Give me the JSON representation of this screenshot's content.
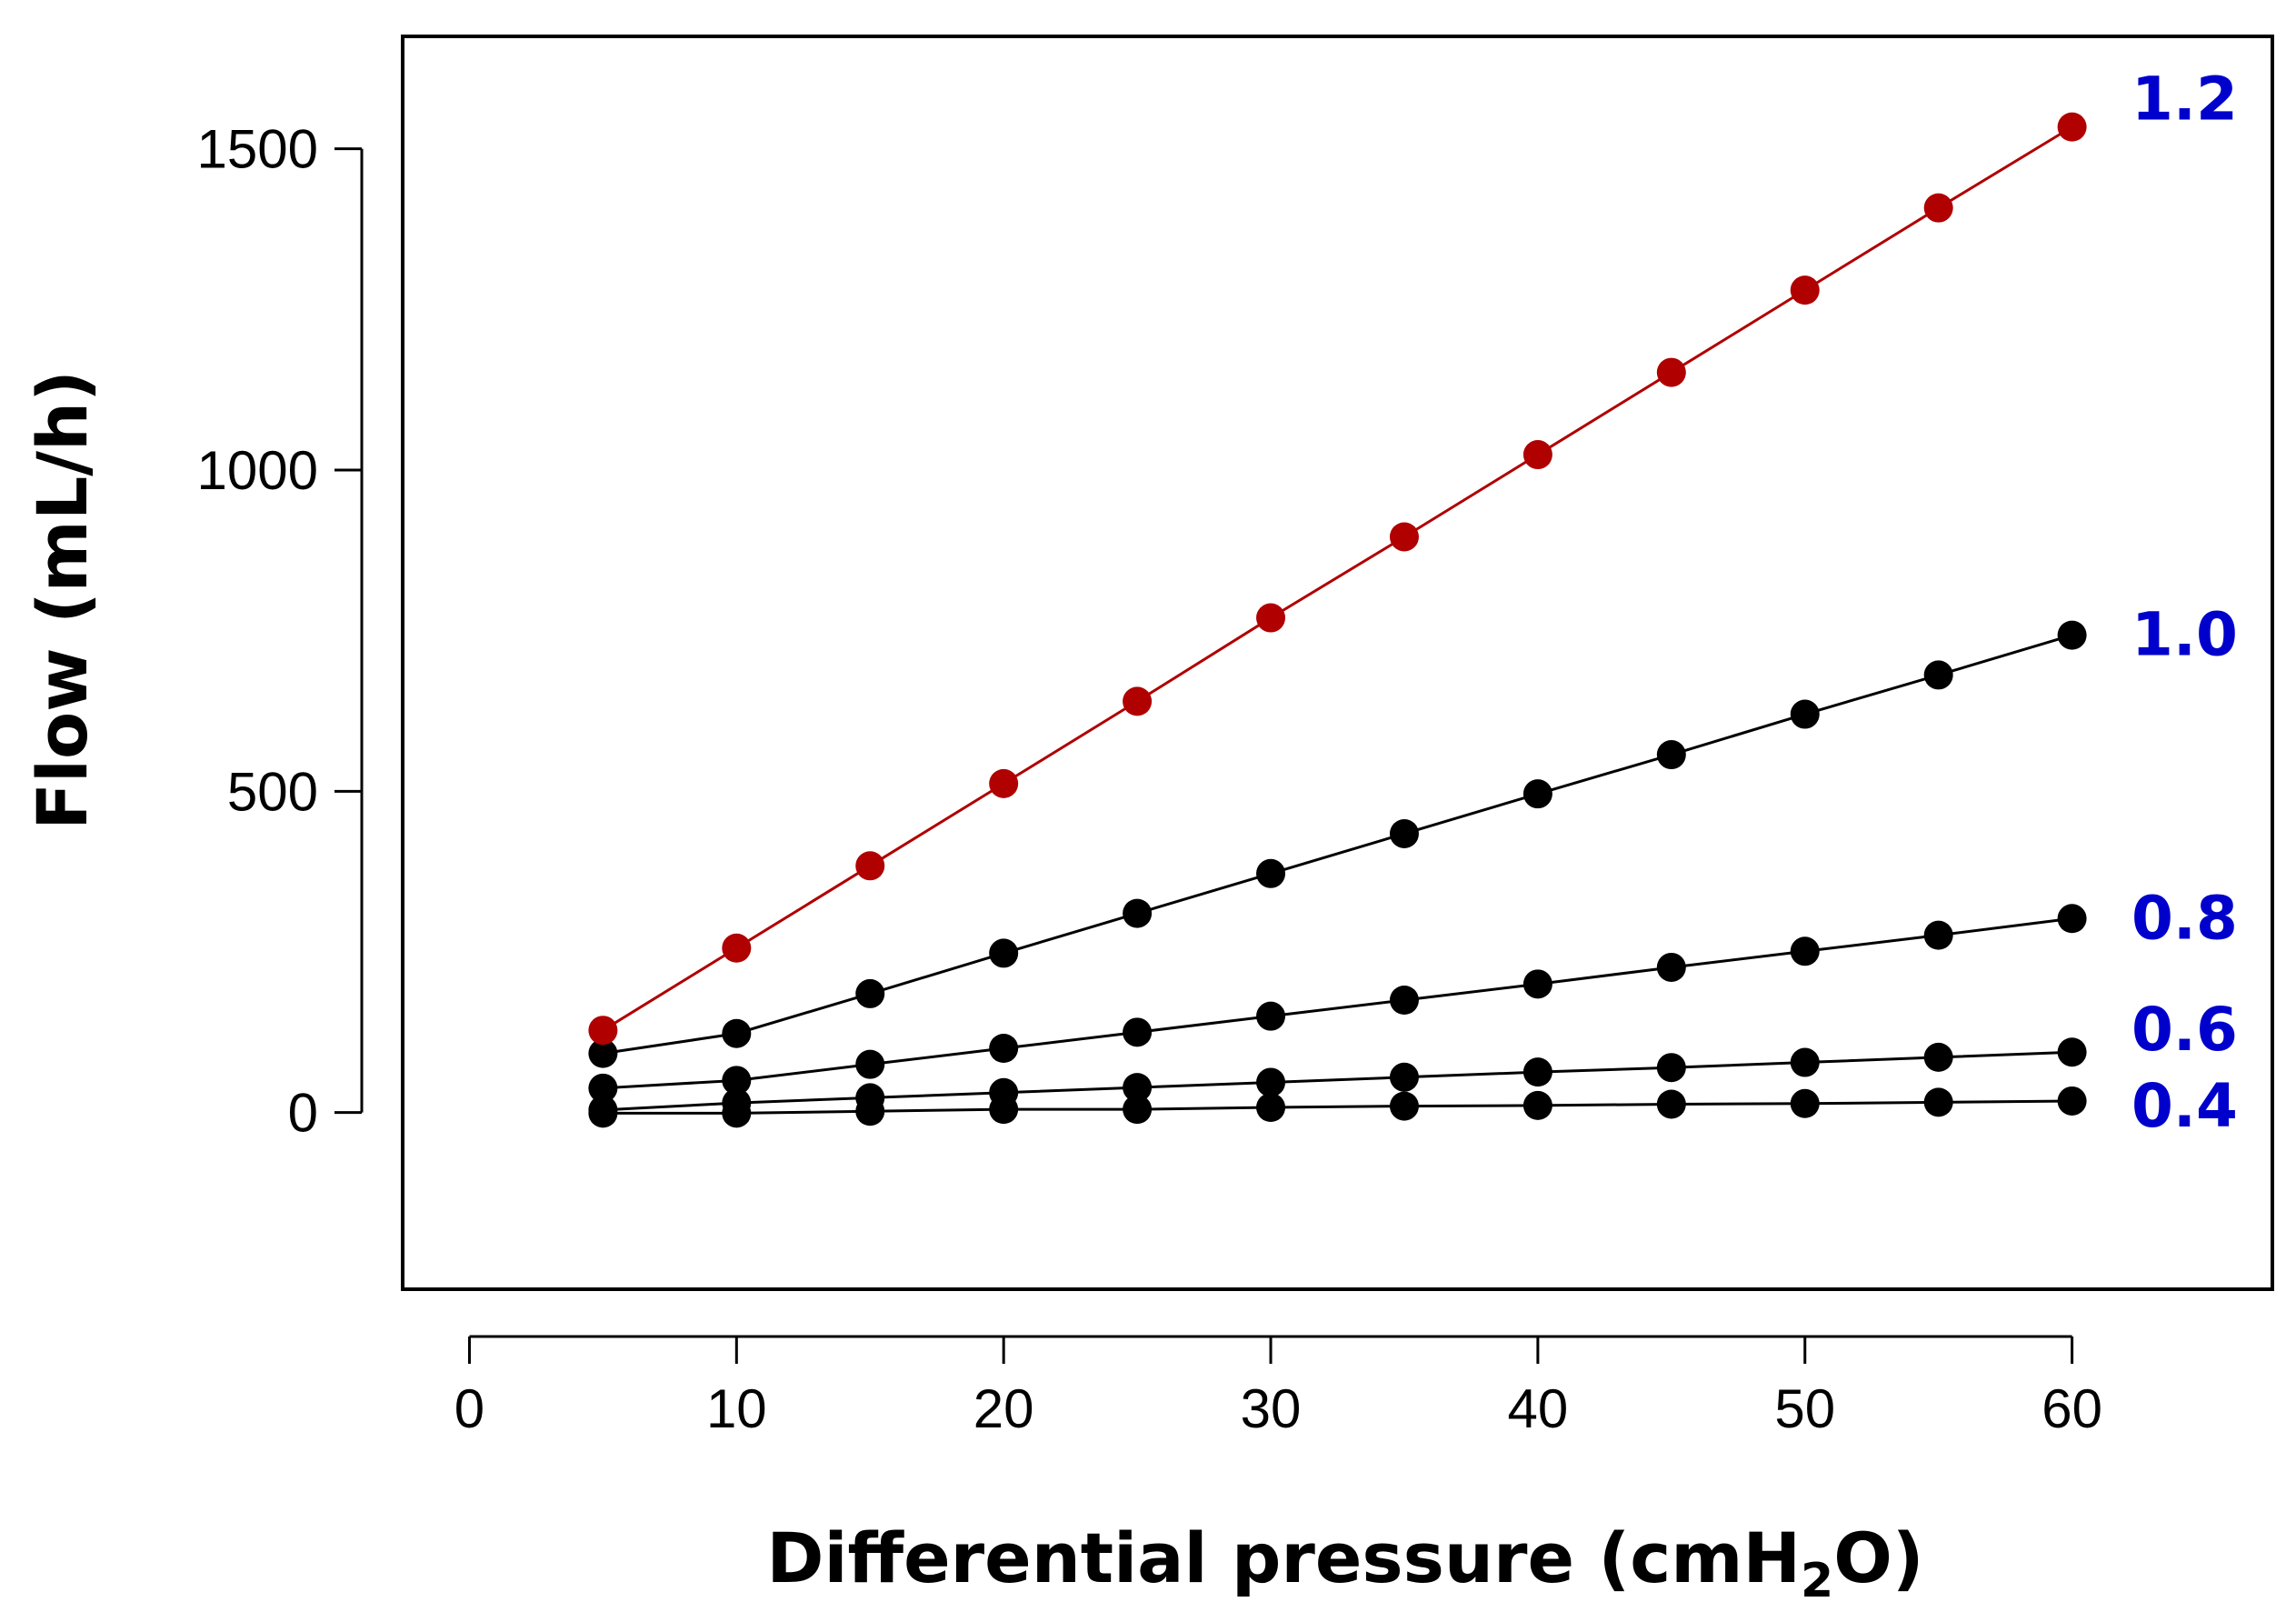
{
  "chart_data": {
    "type": "line",
    "title": "",
    "xlabel": "Differential pressure (cmH",
    "xlabel_sub": "2",
    "xlabel_end": "O)",
    "ylabel": "Flow (mL/h)",
    "xlim": [
      -2.5,
      67.5
    ],
    "ylim": [
      -275,
      1675
    ],
    "x_ticks": [
      0,
      10,
      20,
      30,
      40,
      50,
      60
    ],
    "x_tick_labels": [
      "0",
      "10",
      "20",
      "30",
      "40",
      "50",
      "60"
    ],
    "y_ticks": [
      0,
      500,
      1000,
      1500
    ],
    "y_tick_labels": [
      "0",
      "500",
      "1000",
      "1500"
    ],
    "x": [
      5,
      10,
      15,
      20,
      25,
      30,
      35,
      40,
      45,
      50,
      55,
      60
    ],
    "series": [
      {
        "name": "1.2",
        "color": "#b00000",
        "values": [
          128,
          256,
          384,
          512,
          640,
          770,
          896,
          1024,
          1152,
          1280,
          1408,
          1534
        ]
      },
      {
        "name": "1.0",
        "color": "#000000",
        "values": [
          92,
          123,
          185,
          248,
          310,
          372,
          434,
          496,
          557,
          620,
          681,
          743
        ]
      },
      {
        "name": "0.8",
        "color": "#000000",
        "values": [
          38,
          50,
          75,
          100,
          125,
          150,
          175,
          200,
          226,
          251,
          276,
          302
        ]
      },
      {
        "name": "0.6",
        "color": "#000000",
        "values": [
          4,
          15,
          23,
          31,
          39,
          47,
          55,
          63,
          70,
          78,
          86,
          94
        ]
      },
      {
        "name": "0.4",
        "color": "#000000",
        "values": [
          -1,
          -1,
          2,
          5,
          5,
          8,
          10,
          11,
          13,
          14,
          16,
          18
        ]
      }
    ],
    "label_color": "#0000cc"
  }
}
